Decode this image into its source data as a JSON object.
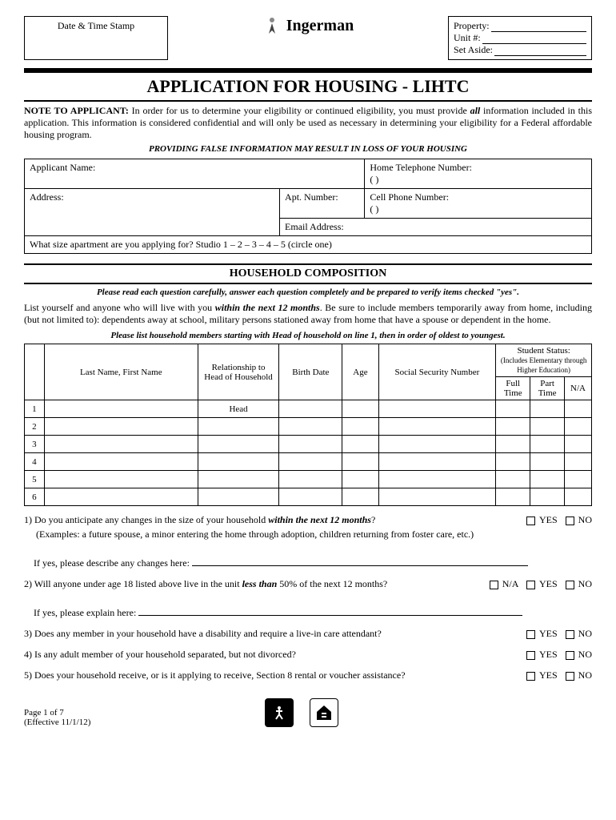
{
  "header": {
    "stamp_label": "Date & Time Stamp",
    "logo_text": "Ingerman",
    "property_label": "Property:",
    "unit_label": "Unit #:",
    "setaside_label": "Set Aside:"
  },
  "title": "APPLICATION FOR HOUSING - LIHTC",
  "note_bold": "NOTE TO APPLICANT:",
  "note_text": " In order for us to determine your eligibility or continued eligibility, you must provide ",
  "note_all": "all",
  "note_text2": " information included in this application. This information is considered confidential and will only be used as necessary in determining your eligibility for a Federal affordable housing program.",
  "warning": "PROVIDING FALSE INFORMATION MAY RESULT IN LOSS OF YOUR HOUSING",
  "applicant": {
    "name_label": "Applicant Name:",
    "home_phone_label": "Home Telephone Number:",
    "home_phone_blank": "(          )",
    "address_label": "Address:",
    "apt_label": "Apt. Number:",
    "cell_label": "Cell Phone Number:",
    "cell_blank": "(          )",
    "email_label": "Email Address:",
    "size_label": "What size apartment are you applying for?   Studio  1 – 2 – 3 – 4 – 5     (circle one)"
  },
  "section_household": "HOUSEHOLD COMPOSITION",
  "household_note": "Please read each question carefully, answer each question completely and be prepared to verify items checked \"yes\".",
  "household_instr1": "List yourself and anyone who will live with you ",
  "household_instr1_bold": "within the next 12 months",
  "household_instr1b": ". Be sure to include members temporarily away from home, including (but not limited to): dependents away at school, military persons stationed away from home that have a spouse or dependent in the home.",
  "household_instr2": "Please list household members starting with Head of household on line 1, then in order of oldest to youngest.",
  "table": {
    "col_name": "Last Name, First Name",
    "col_rel": "Relationship to Head of Household",
    "col_birth": "Birth Date",
    "col_age": "Age",
    "col_ssn": "Social Security Number",
    "col_student": "Student Status:",
    "col_student_sub": "(Includes Elementary through Higher Education)",
    "col_full": "Full Time",
    "col_part": "Part Time",
    "col_na": "N/A",
    "head": "Head",
    "rows": [
      "1",
      "2",
      "3",
      "4",
      "5",
      "6"
    ]
  },
  "q1": "1) Do you anticipate any changes in the size of your household ",
  "q1_bold": "within the next 12 months",
  "q1_end": "?",
  "q1_ex": "(Examples:  a future spouse, a minor entering the home through adoption, children returning from foster care, etc.)",
  "q1_if": "If yes, please describe any changes here:",
  "q2": "2) Will anyone under age 18 listed above live in the unit ",
  "q2_bold": "less than",
  "q2_end": " 50% of the next 12 months?",
  "q2_if": "If yes, please explain here:",
  "q3": "3) Does any member in your household have a disability and require a live-in care attendant?",
  "q4": "4) Is any adult member of your household separated, but not divorced?",
  "q5": "5) Does your household receive, or is it applying to receive, Section 8 rental or voucher assistance?",
  "yes": "YES",
  "no": "NO",
  "na": "N/A",
  "footer": {
    "page": "Page 1 of 7",
    "effective": "(Effective 11/1/12)"
  }
}
